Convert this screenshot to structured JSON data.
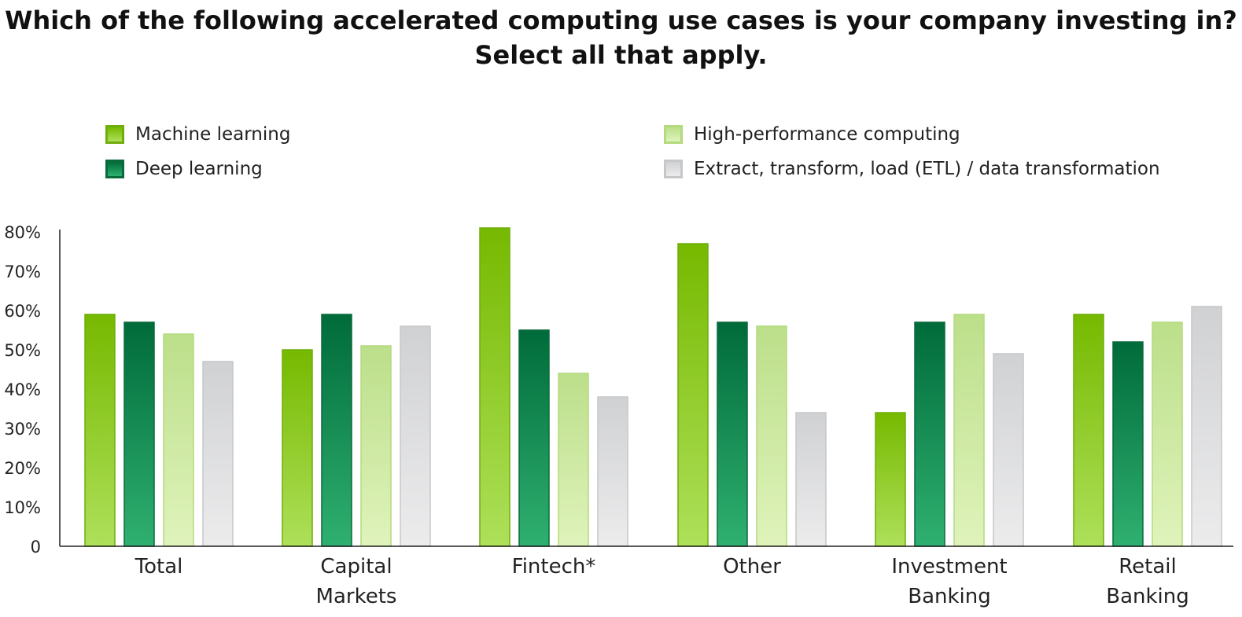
{
  "chart_data": {
    "type": "bar",
    "title_lines": [
      "Which of the following accelerated computing use cases is your company investing in?",
      "Select all that apply."
    ],
    "categories": [
      [
        "Total"
      ],
      [
        "Capital",
        "Markets"
      ],
      [
        "Fintech*"
      ],
      [
        "Other"
      ],
      [
        "Investment",
        "Banking"
      ],
      [
        "Retail",
        "Banking"
      ]
    ],
    "series": [
      {
        "name": "Machine learning",
        "values": [
          59,
          50,
          81,
          77,
          34,
          59
        ],
        "color_top": "#76b900",
        "color_bottom": "#aee05a",
        "border": "#6fae0a"
      },
      {
        "name": "Deep learning",
        "values": [
          57,
          59,
          55,
          57,
          57,
          52
        ],
        "color_top": "#006b3a",
        "color_bottom": "#2fb070",
        "border": "#0a6a3c"
      },
      {
        "name": "High-performance computing",
        "values": [
          54,
          51,
          44,
          56,
          59,
          57
        ],
        "color_top": "#bcdf8a",
        "color_bottom": "#dff3bb",
        "border": "#b3da7e"
      },
      {
        "name": "Extract, transform, load (ETL) / data transformation",
        "values": [
          47,
          56,
          38,
          34,
          49,
          61
        ],
        "color_top": "#d0d1d3",
        "color_bottom": "#ececed",
        "border": "#c6c7c9"
      }
    ],
    "y_ticks": [
      {
        "value": 0,
        "label": "0"
      },
      {
        "value": 10,
        "label": "10%"
      },
      {
        "value": 20,
        "label": "20%"
      },
      {
        "value": 30,
        "label": "30%"
      },
      {
        "value": 40,
        "label": "40%"
      },
      {
        "value": 50,
        "label": "50%"
      },
      {
        "value": 60,
        "label": "60%"
      },
      {
        "value": 70,
        "label": "70%"
      },
      {
        "value": 80,
        "label": "80%"
      }
    ],
    "ylim": [
      0,
      80
    ],
    "grid": false,
    "legend_position": "top"
  }
}
